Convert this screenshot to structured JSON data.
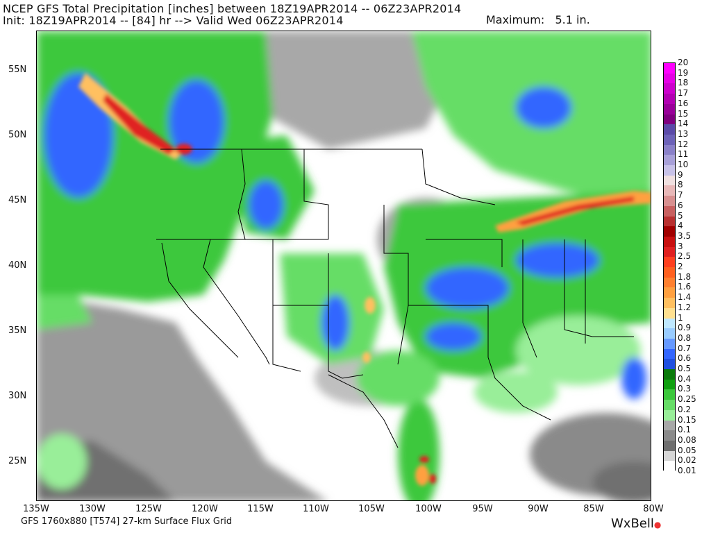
{
  "header": {
    "line1": "NCEP GFS Total Precipitation [inches] between 18Z19APR2014 -- 06Z23APR2014",
    "line2": "Init: 18Z19APR2014 -- [84] hr --> Valid Wed 06Z23APR2014",
    "maximum": "Maximum:   5.1 in."
  },
  "lat_labels": [
    "55N",
    "50N",
    "45N",
    "40N",
    "35N",
    "30N",
    "25N"
  ],
  "lon_labels": [
    "135W",
    "130W",
    "125W",
    "120W",
    "115W",
    "110W",
    "105W",
    "100W",
    "95W",
    "90W",
    "85W",
    "80W"
  ],
  "legend": {
    "labels": [
      "20",
      "19",
      "18",
      "17",
      "16",
      "15",
      "14",
      "13",
      "12",
      "11",
      "10",
      "9",
      "8",
      "7",
      "6",
      "5",
      "4",
      "3.5",
      "3",
      "2.5",
      "2",
      "1.8",
      "1.6",
      "1.4",
      "1.2",
      "1",
      "0.9",
      "0.8",
      "0.7",
      "0.6",
      "0.5",
      "0.4",
      "0.3",
      "0.25",
      "0.2",
      "0.15",
      "0.1",
      "0.08",
      "0.05",
      "0.02",
      "0.01"
    ],
    "colors": [
      "#ff00ff",
      "#e600e6",
      "#cc00cc",
      "#b200b2",
      "#990099",
      "#7f007f",
      "#5b4aa8",
      "#6d62b8",
      "#8a80c8",
      "#a8a0d8",
      "#c8c2e8",
      "#f0e0e0",
      "#e8b8b8",
      "#d89090",
      "#c86060",
      "#b83030",
      "#a00000",
      "#c81010",
      "#e02020",
      "#ff4020",
      "#ff6020",
      "#ff8030",
      "#ffa040",
      "#ffc060",
      "#ffe090",
      "#bfe8ff",
      "#99ccff",
      "#6699ff",
      "#3366ff",
      "#1f4fe0",
      "#0a7a0a",
      "#10a010",
      "#3cc83c",
      "#66dd66",
      "#99ee99",
      "#a8a8a8",
      "#8a8a8a",
      "#6f6f6f",
      "#d6d6d6",
      "#ffffff"
    ]
  },
  "footer": "GFS 1760x880 [T574] 27-km Surface Flux Grid",
  "brand": "WxBell"
}
